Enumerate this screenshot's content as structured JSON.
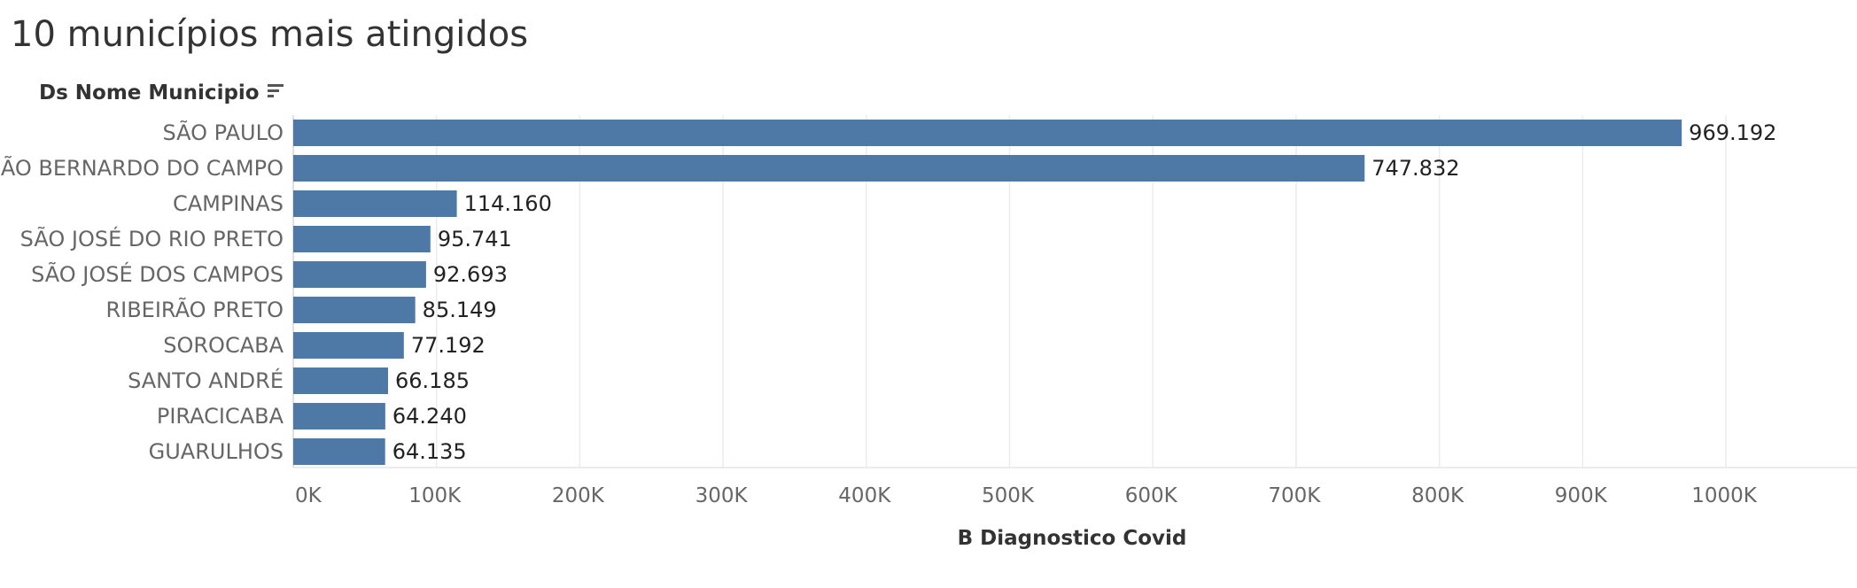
{
  "title": "10 municípios mais atingidos",
  "chart_data": {
    "type": "bar",
    "orientation": "horizontal",
    "title": "10 municípios mais atingidos",
    "row_header": "Ds Nome Municipio",
    "xlabel": "B Diagnostico Covid",
    "ylabel": "",
    "categories": [
      "SÃO PAULO",
      "SÃO BERNARDO DO CAMPO",
      "CAMPINAS",
      "SÃO JOSÉ DO RIO PRETO",
      "SÃO JOSÉ DOS CAMPOS",
      "RIBEIRÃO PRETO",
      "SOROCABA",
      "SANTO ANDRÉ",
      "PIRACICABA",
      "GUARULHOS"
    ],
    "values": [
      969192,
      747832,
      114160,
      95741,
      92693,
      85149,
      77192,
      66185,
      64240,
      64135
    ],
    "value_labels": [
      "969.192",
      "747.832",
      "114.160",
      "95.741",
      "92.693",
      "85.149",
      "77.192",
      "66.185",
      "64.240",
      "64.135"
    ],
    "xlim": [
      0,
      1080000
    ],
    "x_ticks": [
      0,
      100000,
      200000,
      300000,
      400000,
      500000,
      600000,
      700000,
      800000,
      900000,
      1000000
    ],
    "x_tick_labels": [
      "0K",
      "100K",
      "200K",
      "300K",
      "400K",
      "500K",
      "600K",
      "700K",
      "800K",
      "900K",
      "1000K"
    ],
    "grid": true,
    "legend": "none",
    "bar_color": "#4e79a7",
    "sort_icon": "sort-descending-icon"
  }
}
